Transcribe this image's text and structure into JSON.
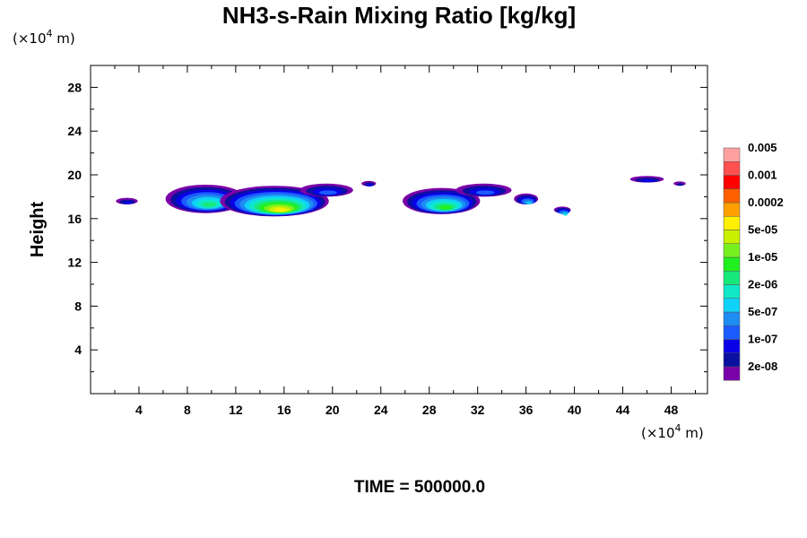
{
  "chart_data": {
    "type": "heatmap",
    "title": "NH3-s-Rain Mixing Ratio [kg/kg]",
    "ylabel": "Height",
    "xunit_prefix": "(×10",
    "xunit_exp": "4",
    "xunit_suffix": " m)",
    "yunit_prefix": "(×10",
    "yunit_exp": "4",
    "yunit_suffix": " m)",
    "xlim": [
      0,
      51
    ],
    "ylim": [
      0,
      30
    ],
    "xticks": [
      4,
      8,
      12,
      16,
      20,
      24,
      28,
      32,
      36,
      40,
      44,
      48
    ],
    "yticks": [
      4,
      8,
      12,
      16,
      20,
      24,
      28
    ],
    "time_label": "TIME = 500000.0",
    "colorbar": {
      "colors": [
        "#7a00a8",
        "#0a10a0",
        "#0a00e6",
        "#1a5cff",
        "#1e8cf0",
        "#10d2f8",
        "#10e8c8",
        "#18e87c",
        "#20f020",
        "#78f020",
        "#c8f000",
        "#fff000",
        "#ffa000",
        "#ff6000",
        "#ff0000",
        "#ff5050",
        "#ffa0a0"
      ],
      "labels": [
        "2e-08",
        "1e-07",
        "5e-07",
        "2e-06",
        "1e-05",
        "5e-05",
        "0.0002",
        "0.001",
        "0.005"
      ]
    },
    "features": [
      {
        "x": 3.0,
        "y": 17.6,
        "rx": 0.9,
        "ry": 0.3,
        "level": 2
      },
      {
        "x": 9.5,
        "y": 17.8,
        "rx": 3.3,
        "ry": 1.3,
        "level": 7
      },
      {
        "x": 15.2,
        "y": 17.6,
        "rx": 4.5,
        "ry": 1.4,
        "level": 11
      },
      {
        "x": 19.5,
        "y": 18.6,
        "rx": 2.2,
        "ry": 0.6,
        "level": 3
      },
      {
        "x": 23.0,
        "y": 19.2,
        "rx": 0.6,
        "ry": 0.25,
        "level": 2
      },
      {
        "x": 29.0,
        "y": 17.6,
        "rx": 3.2,
        "ry": 1.2,
        "level": 8
      },
      {
        "x": 32.5,
        "y": 18.6,
        "rx": 2.3,
        "ry": 0.6,
        "level": 3
      },
      {
        "x": 36.0,
        "y": 17.8,
        "rx": 1.0,
        "ry": 0.5,
        "level": 5
      },
      {
        "x": 39.0,
        "y": 16.8,
        "rx": 0.7,
        "ry": 0.3,
        "level": 6
      },
      {
        "x": 46.0,
        "y": 19.6,
        "rx": 1.4,
        "ry": 0.3,
        "level": 2
      },
      {
        "x": 48.7,
        "y": 19.2,
        "rx": 0.5,
        "ry": 0.2,
        "level": 1
      }
    ]
  }
}
